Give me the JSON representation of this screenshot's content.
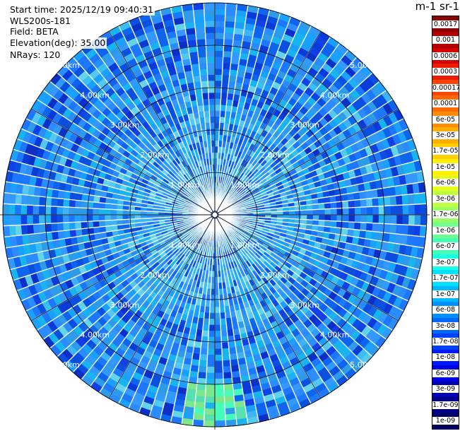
{
  "header": {
    "start_time": "Start time: 2025/12/19 09:40:31",
    "device": "WLS200s-181",
    "field": "Field: BETA",
    "elevation": "Elevation(deg): 35.00",
    "nrays": "NRays: 120"
  },
  "colorbar": {
    "title": "m-1 sr-1",
    "ticks": [
      "0.0017",
      "0.001",
      "0.0006",
      "0.0003",
      "0.00017",
      "0.0001",
      "6e-05",
      "3e-05",
      "1.7e-05",
      "1e-05",
      "6e-06",
      "3e-06",
      "1.7e-06",
      "1e-06",
      "6e-07",
      "3e-07",
      "1.7e-07",
      "1e-07",
      "6e-08",
      "3e-08",
      "1.7e-08",
      "1e-08",
      "6e-09",
      "3e-09",
      "1.7e-09",
      "1e-09"
    ],
    "colors": [
      "#8b0000",
      "#b00000",
      "#d40000",
      "#ee1c00",
      "#ff4400",
      "#ff6a00",
      "#ff8c00",
      "#ffad00",
      "#ffd000",
      "#fff000",
      "#e6ff1a",
      "#bfff40",
      "#99ff66",
      "#70ff8f",
      "#45ffb8",
      "#1affe0",
      "#00e0ff",
      "#00b8ff",
      "#0090ff",
      "#0068ff",
      "#0040ff",
      "#0018ff",
      "#0000e0",
      "#0000b4",
      "#000088",
      "#000060"
    ]
  },
  "chart_data": {
    "type": "heatmap",
    "projection": "polar-ppi",
    "range_rings_km": [
      1,
      2,
      3,
      4,
      5
    ],
    "ring_labels": [
      "1.00km",
      "2.00km",
      "3.00km",
      "4.00km",
      "5.00km"
    ],
    "max_range_km": 5.0,
    "n_rays": 120,
    "elevation_deg": 35.0,
    "dominant_beta_range": [
      "1e-08",
      "6e-07"
    ],
    "notes_values": {
      "typical_beta": "3e-08",
      "high_beta_sector_south_near_5km": "1.7e-07"
    }
  }
}
